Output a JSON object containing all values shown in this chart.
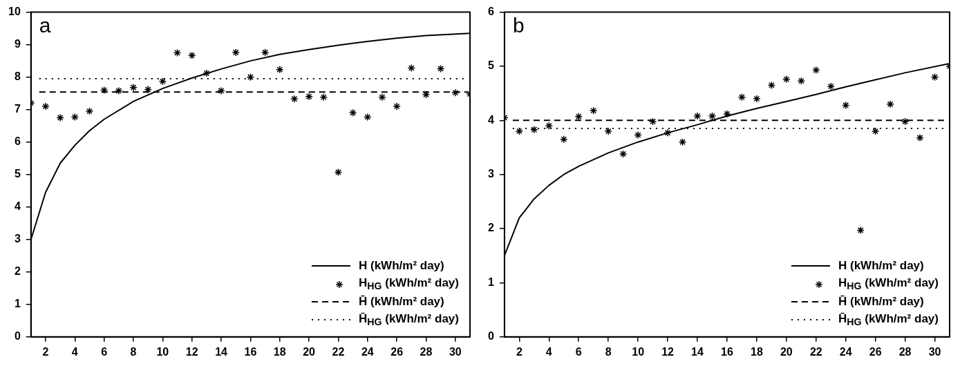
{
  "chart_data": [
    {
      "type": "scatter",
      "annotations": [
        "a"
      ],
      "xlim": [
        1,
        31
      ],
      "xticks": [
        2,
        4,
        6,
        8,
        10,
        12,
        14,
        16,
        18,
        20,
        22,
        24,
        26,
        28,
        30
      ],
      "ylim": [
        0,
        10
      ],
      "yticks": [
        0,
        1,
        2,
        3,
        4,
        5,
        6,
        7,
        8,
        9,
        10
      ],
      "grid": false,
      "legend": "bottom right",
      "series": [
        {
          "name": "H (kWh/m² day)",
          "type": "line",
          "color": "#000000",
          "marker": "none",
          "line_style": "solid",
          "x": [
            1,
            2,
            3,
            4,
            5,
            6,
            8,
            10,
            12,
            14,
            16,
            18,
            20,
            22,
            24,
            26,
            28,
            31
          ],
          "values": [
            3.0,
            4.45,
            5.35,
            5.9,
            6.35,
            6.7,
            7.25,
            7.65,
            7.97,
            8.25,
            8.5,
            8.7,
            8.85,
            8.98,
            9.1,
            9.2,
            9.28,
            9.35
          ]
        },
        {
          "name": "H$_{HG}$ (kWh/m² day)",
          "type": "scatter",
          "color": "#000000",
          "marker": "cross",
          "x": [
            1,
            2,
            3,
            4,
            5,
            6,
            7,
            8,
            9,
            10,
            11,
            12,
            13,
            14,
            15,
            16,
            17,
            18,
            19,
            20,
            21,
            22,
            23,
            24,
            25,
            26,
            27,
            28,
            29,
            30,
            31
          ],
          "values": [
            7.2,
            7.1,
            6.75,
            6.77,
            6.95,
            7.6,
            7.58,
            7.68,
            7.62,
            7.87,
            8.75,
            8.67,
            8.12,
            7.58,
            8.76,
            8.0,
            8.76,
            8.23,
            7.33,
            7.4,
            7.38,
            5.07,
            6.9,
            6.77,
            7.38,
            7.1,
            8.28,
            7.46,
            8.26,
            7.52,
            7.48
          ]
        }
      ],
      "ref_lines": [
        {
          "axis": "y",
          "value": 7.54,
          "label": "H̄ (kWh/m² day)",
          "color": "#000000",
          "line_style": "dashed"
        },
        {
          "axis": "y",
          "value": 7.95,
          "label": "H̄$_{HG}$ (kWh/m² day)",
          "color": "#000000",
          "line_style": "dotted"
        }
      ]
    },
    {
      "type": "scatter",
      "annotations": [
        "b"
      ],
      "xlim": [
        1,
        31
      ],
      "xticks": [
        2,
        4,
        6,
        8,
        10,
        12,
        14,
        16,
        18,
        20,
        22,
        24,
        26,
        28,
        30
      ],
      "ylim": [
        0,
        6
      ],
      "yticks": [
        0,
        1,
        2,
        3,
        4,
        5,
        6
      ],
      "grid": false,
      "legend": "bottom right",
      "series": [
        {
          "name": "H (kWh/m² day)",
          "type": "line",
          "color": "#000000",
          "marker": "none",
          "line_style": "solid",
          "x": [
            1,
            2,
            3,
            4,
            5,
            6,
            8,
            10,
            12,
            14,
            16,
            18,
            20,
            22,
            24,
            26,
            28,
            31
          ],
          "values": [
            1.5,
            2.2,
            2.55,
            2.8,
            3.0,
            3.15,
            3.4,
            3.6,
            3.77,
            3.92,
            4.08,
            4.22,
            4.35,
            4.48,
            4.62,
            4.75,
            4.88,
            5.05
          ]
        },
        {
          "name": "H$_{HG}$ (kWh/m² day)",
          "type": "scatter",
          "color": "#000000",
          "marker": "cross",
          "x": [
            1,
            2,
            3,
            4,
            5,
            6,
            7,
            8,
            9,
            10,
            11,
            12,
            13,
            14,
            15,
            16,
            17,
            18,
            19,
            20,
            21,
            22,
            23,
            24,
            25,
            26,
            27,
            28,
            29,
            30,
            31
          ],
          "values": [
            4.05,
            3.8,
            3.83,
            3.9,
            3.65,
            4.07,
            4.18,
            3.8,
            3.38,
            3.73,
            3.98,
            3.77,
            3.6,
            4.08,
            4.08,
            4.12,
            4.43,
            4.4,
            4.65,
            4.76,
            4.73,
            4.93,
            4.63,
            4.28,
            1.97,
            3.8,
            4.3,
            3.98,
            3.68,
            4.8,
            5.0
          ]
        }
      ],
      "ref_lines": [
        {
          "axis": "y",
          "value": 4.0,
          "label": "H̄ (kWh/m² day)",
          "color": "#000000",
          "line_style": "dashed"
        },
        {
          "axis": "y",
          "value": 3.85,
          "label": "H̄$_{HG}$ (kWh/m² day)",
          "color": "#000000",
          "line_style": "dotted"
        }
      ]
    }
  ]
}
